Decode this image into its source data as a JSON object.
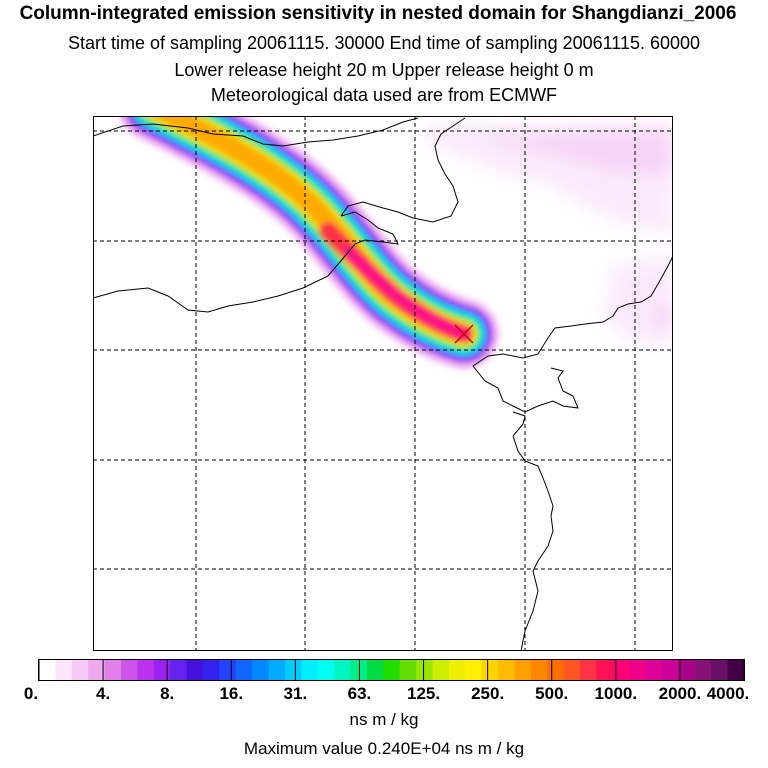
{
  "titles": {
    "line1": "Column-integrated emission sensitivity in nested domain for Shangdianzi_2006",
    "line2": "Start time of sampling 20061115. 30000     End time of sampling 20061115. 60000",
    "line3": "Lower release height   20 m          Upper release height    0 m",
    "line4": "Meteorological data used are from ECMWF"
  },
  "colorbar": {
    "labels": [
      "0.",
      "4.",
      "8.",
      "16.",
      "31.",
      "63.",
      "125.",
      "250.",
      "500.",
      "1000.",
      "2000.",
      "4000."
    ],
    "colors": [
      "#ffffff",
      "#fbe6fb",
      "#f6ccf6",
      "#eeaaee",
      "#e080e8",
      "#cc55e8",
      "#bb33ee",
      "#9922ee",
      "#6622ee",
      "#4411dd",
      "#3322ee",
      "#2244ff",
      "#1166ff",
      "#0088ff",
      "#00aaff",
      "#00ccff",
      "#00eeff",
      "#00ffee",
      "#00f5c0",
      "#00ee88",
      "#00dd44",
      "#22dd00",
      "#66dd00",
      "#99e600",
      "#ccee00",
      "#eef000",
      "#ffee00",
      "#ffd500",
      "#ffbb00",
      "#ffa000",
      "#ff8800",
      "#ff6e00",
      "#ff5522",
      "#ff3344",
      "#ff1155",
      "#ff0077",
      "#ee0088",
      "#dd0099",
      "#cc0099",
      "#aa0088",
      "#881177",
      "#661166",
      "#440044"
    ],
    "units": "ns m / kg",
    "max_value_text": "Maximum value  0.240E+04 ns m / kg"
  },
  "map": {
    "release_site": "Shangdianzi",
    "plume_colors": {
      "outer": "#f0b3f3",
      "violet": "#aa22ee",
      "blue": "#1a66ff",
      "cyan": "#00e6ee",
      "green": "#22dd55",
      "yellow": "#eeee11",
      "orange": "#ffaa00",
      "red": "#ff3344",
      "magenta": "#ff1188"
    }
  }
}
